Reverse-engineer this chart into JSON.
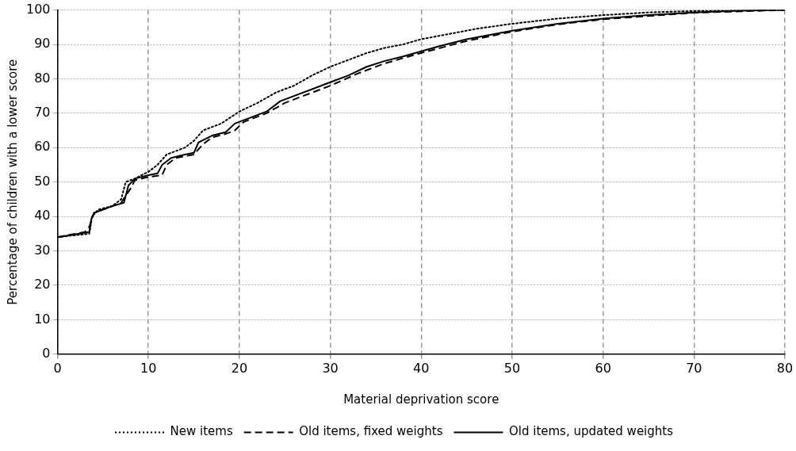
{
  "chart_data": {
    "type": "line",
    "xlabel": "Material deprivation score",
    "ylabel": "Percentage of children with a lower score",
    "xlim": [
      0,
      80
    ],
    "xticks": [
      0,
      10,
      20,
      30,
      40,
      50,
      60,
      70,
      80
    ],
    "ylim": [
      0,
      100
    ],
    "yticks": [
      0,
      10,
      20,
      30,
      40,
      50,
      60,
      70,
      80,
      90,
      100
    ],
    "grid": true,
    "legend": "bottom",
    "marker": "none",
    "series": [
      {
        "name": "New items",
        "color": "#000000",
        "line_style": "dotted",
        "x": [
          0,
          3.5,
          3.8,
          4.5,
          6,
          7,
          7.5,
          8.5,
          10,
          11,
          12,
          14,
          15,
          16,
          18,
          20,
          22,
          24,
          26,
          28,
          30,
          32,
          34,
          36,
          38,
          40,
          43,
          46,
          50,
          55,
          60,
          65,
          70,
          80
        ],
        "values": [
          34,
          35,
          40,
          42,
          43,
          45,
          50,
          51,
          53,
          55,
          58,
          60,
          62,
          65,
          67,
          70.5,
          73,
          76,
          78,
          81,
          83.5,
          85.5,
          87.5,
          89,
          90,
          91.5,
          93,
          94.5,
          96,
          97.5,
          98.5,
          99.3,
          99.7,
          100
        ]
      },
      {
        "name": "Old items, fixed weights",
        "color": "#000000",
        "line_style": "dashed",
        "x": [
          0,
          3,
          3.5,
          4,
          6,
          7,
          8,
          8.5,
          10,
          11.5,
          12,
          13,
          15,
          16,
          17,
          18.5,
          19.5,
          20.5,
          23,
          25,
          27,
          30,
          33,
          36,
          40,
          45,
          50,
          55,
          60,
          70,
          80
        ],
        "values": [
          34,
          35.5,
          37,
          41,
          43,
          44,
          48,
          50.5,
          51.5,
          52,
          55,
          57,
          58,
          61,
          63,
          64,
          65,
          67.5,
          70,
          73,
          75,
          78,
          81.5,
          84.5,
          87.5,
          91,
          93.7,
          95.8,
          97.3,
          99.2,
          100
        ]
      },
      {
        "name": "Old items, updated weights",
        "color": "#000000",
        "line_style": "solid",
        "x": [
          0,
          3.5,
          3.7,
          4,
          6,
          7.3,
          7.8,
          8.5,
          10,
          11,
          11.5,
          12.5,
          14,
          15,
          15.5,
          17,
          18.5,
          19.5,
          21,
          23,
          24.5,
          26,
          28,
          30,
          32,
          34,
          36,
          38,
          40,
          42,
          45,
          50,
          55,
          60,
          65,
          70,
          75,
          80
        ],
        "values": [
          34,
          35.5,
          39,
          41,
          43,
          44,
          49,
          51,
          52,
          52.5,
          55,
          57,
          58,
          58.5,
          61.5,
          63.5,
          64.5,
          67,
          68.5,
          70.5,
          73.5,
          75,
          77,
          79,
          81,
          83.5,
          85.2,
          86.5,
          88,
          89.5,
          91.5,
          94,
          96,
          97.5,
          98.5,
          99.3,
          99.8,
          100
        ]
      }
    ]
  }
}
